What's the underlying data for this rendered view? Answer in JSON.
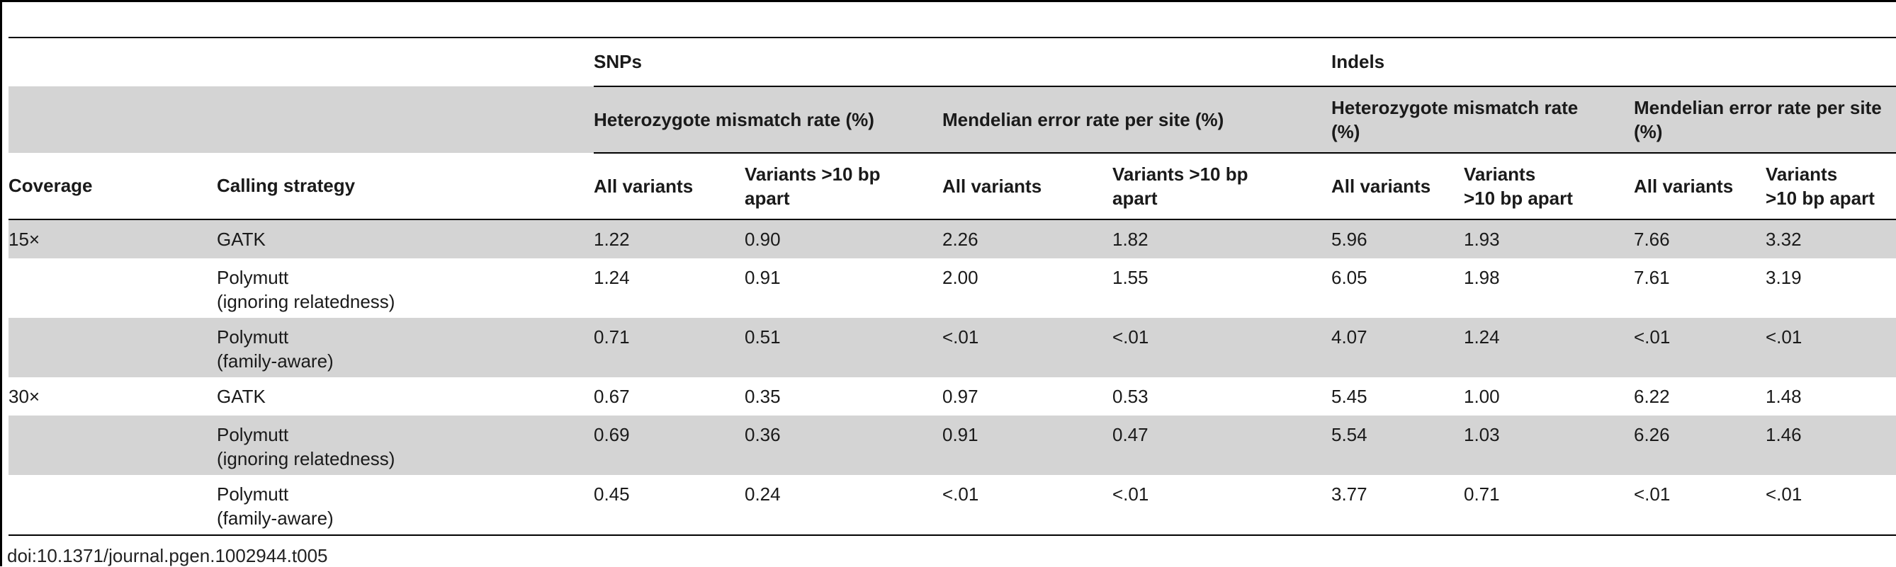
{
  "table": {
    "group_headers": {
      "snps": "SNPs",
      "indels": "Indels"
    },
    "subgroup_headers": {
      "snp_het": "Heterozygote mismatch rate (%)",
      "snp_mend": "Mendelian error rate per site (%)",
      "indel_het": "Heterozygote mismatch rate (%)",
      "indel_mend": "Mendelian error rate per site (%)"
    },
    "columns": {
      "coverage": "Coverage",
      "calling_strategy": "Calling strategy",
      "snp_het_all": "All variants",
      "snp_het_10bp": "Variants >10 bp apart",
      "snp_mend_all": "All variants",
      "snp_mend_10bp": "Variants >10 bp apart",
      "indel_het_all": "All variants",
      "indel_het_10bp_line1": "Variants",
      "indel_het_10bp_line2": ">10 bp apart",
      "indel_mend_all": "All variants",
      "indel_mend_10bp_line1": "Variants",
      "indel_mend_10bp_line2": ">10 bp apart"
    },
    "rows": [
      {
        "coverage": "15×",
        "strategy_line1": "GATK",
        "strategy_line2": "",
        "values": [
          "1.22",
          "0.90",
          "2.26",
          "1.82",
          "5.96",
          "1.93",
          "7.66",
          "3.32"
        ]
      },
      {
        "coverage": "",
        "strategy_line1": "Polymutt",
        "strategy_line2": "(ignoring relatedness)",
        "values": [
          "1.24",
          "0.91",
          "2.00",
          "1.55",
          "6.05",
          "1.98",
          "7.61",
          "3.19"
        ]
      },
      {
        "coverage": "",
        "strategy_line1": "Polymutt",
        "strategy_line2": "(family-aware)",
        "values": [
          "0.71",
          "0.51",
          "<.01",
          "<.01",
          "4.07",
          "1.24",
          "<.01",
          "<.01"
        ]
      },
      {
        "coverage": "30×",
        "strategy_line1": "GATK",
        "strategy_line2": "",
        "values": [
          "0.67",
          "0.35",
          "0.97",
          "0.53",
          "5.45",
          "1.00",
          "6.22",
          "1.48"
        ]
      },
      {
        "coverage": "",
        "strategy_line1": "Polymutt",
        "strategy_line2": "(ignoring relatedness)",
        "values": [
          "0.69",
          "0.36",
          "0.91",
          "0.47",
          "5.54",
          "1.03",
          "6.26",
          "1.46"
        ]
      },
      {
        "coverage": "",
        "strategy_line1": "Polymutt",
        "strategy_line2": "(family-aware)",
        "values": [
          "0.45",
          "0.24",
          "<.01",
          "<.01",
          "3.77",
          "0.71",
          "<.01",
          "<.01"
        ]
      }
    ]
  },
  "footer": {
    "doi": "doi:10.1371/journal.pgen.1002944.t005"
  },
  "colors": {
    "row_shade": "#d4d4d4",
    "rule": "#000000"
  }
}
